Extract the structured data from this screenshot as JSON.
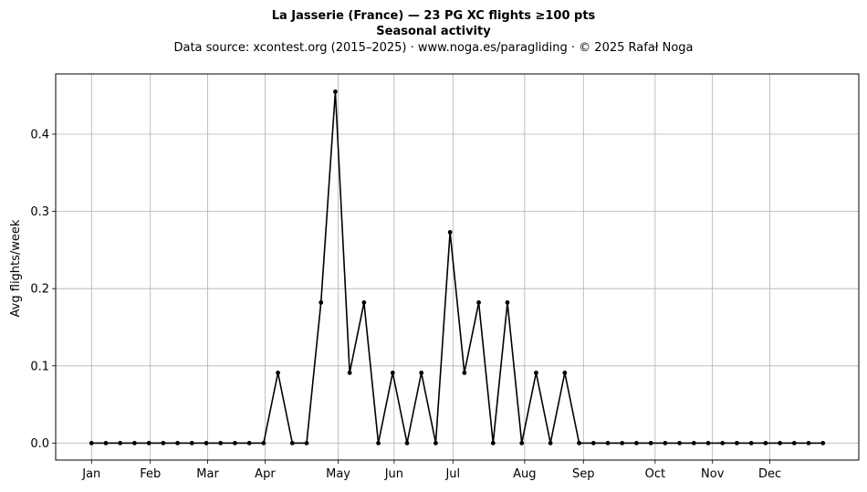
{
  "chart_data": {
    "type": "line",
    "title_lines": [
      "La Jasserie (France)  —  23 PG XC flights ≥100 pts",
      "Seasonal activity"
    ],
    "subtitle": "Data source: xcontest.org (2015–2025)  ·  www.noga.es/paragliding  ·  © 2025 Rafał Noga",
    "xlabel": "",
    "ylabel": "Avg flights/week",
    "x_unit": "week of year",
    "xlim": [
      -1.5,
      54.5
    ],
    "ylim": [
      -0.022,
      0.478
    ],
    "x_ticks": [
      {
        "label": "Jan",
        "week": 1
      },
      {
        "label": "Feb",
        "week": 5.1
      },
      {
        "label": "Mar",
        "week": 9.1
      },
      {
        "label": "Apr",
        "week": 13.1
      },
      {
        "label": "May",
        "week": 18.2
      },
      {
        "label": "Jun",
        "week": 22.1
      },
      {
        "label": "Jul",
        "week": 26.2
      },
      {
        "label": "Aug",
        "week": 31.2
      },
      {
        "label": "Sep",
        "week": 35.3
      },
      {
        "label": "Oct",
        "week": 40.3
      },
      {
        "label": "Nov",
        "week": 44.3
      },
      {
        "label": "Dec",
        "week": 48.3
      }
    ],
    "y_ticks": [
      0.0,
      0.1,
      0.2,
      0.3,
      0.4
    ],
    "y_tick_labels": [
      "0.0",
      "0.1",
      "0.2",
      "0.3",
      "0.4"
    ],
    "grid": true,
    "legend": false,
    "series": [
      {
        "x": [
          1,
          2,
          3,
          4,
          5,
          6,
          7,
          8,
          9,
          10,
          11,
          12,
          13,
          14,
          15,
          16,
          17,
          18,
          19,
          20,
          21,
          22,
          23,
          24,
          25,
          26,
          27,
          28,
          29,
          30,
          31,
          32,
          33,
          34,
          35,
          36,
          37,
          38,
          39,
          40,
          41,
          42,
          43,
          44,
          45,
          46,
          47,
          48,
          49,
          50,
          51,
          52
        ],
        "values": [
          0,
          0,
          0,
          0,
          0,
          0,
          0,
          0,
          0,
          0,
          0,
          0,
          0,
          0.091,
          0,
          0,
          0.182,
          0.455,
          0.091,
          0.182,
          0,
          0.091,
          0,
          0.091,
          0,
          0.273,
          0.091,
          0.182,
          0,
          0.182,
          0,
          0.091,
          0,
          0.091,
          0,
          0,
          0,
          0,
          0,
          0,
          0,
          0,
          0,
          0,
          0,
          0,
          0,
          0,
          0,
          0,
          0,
          0
        ]
      }
    ],
    "colors": {
      "line": "#000000",
      "grid": "#b0b0b0",
      "axes": "#000000"
    }
  }
}
